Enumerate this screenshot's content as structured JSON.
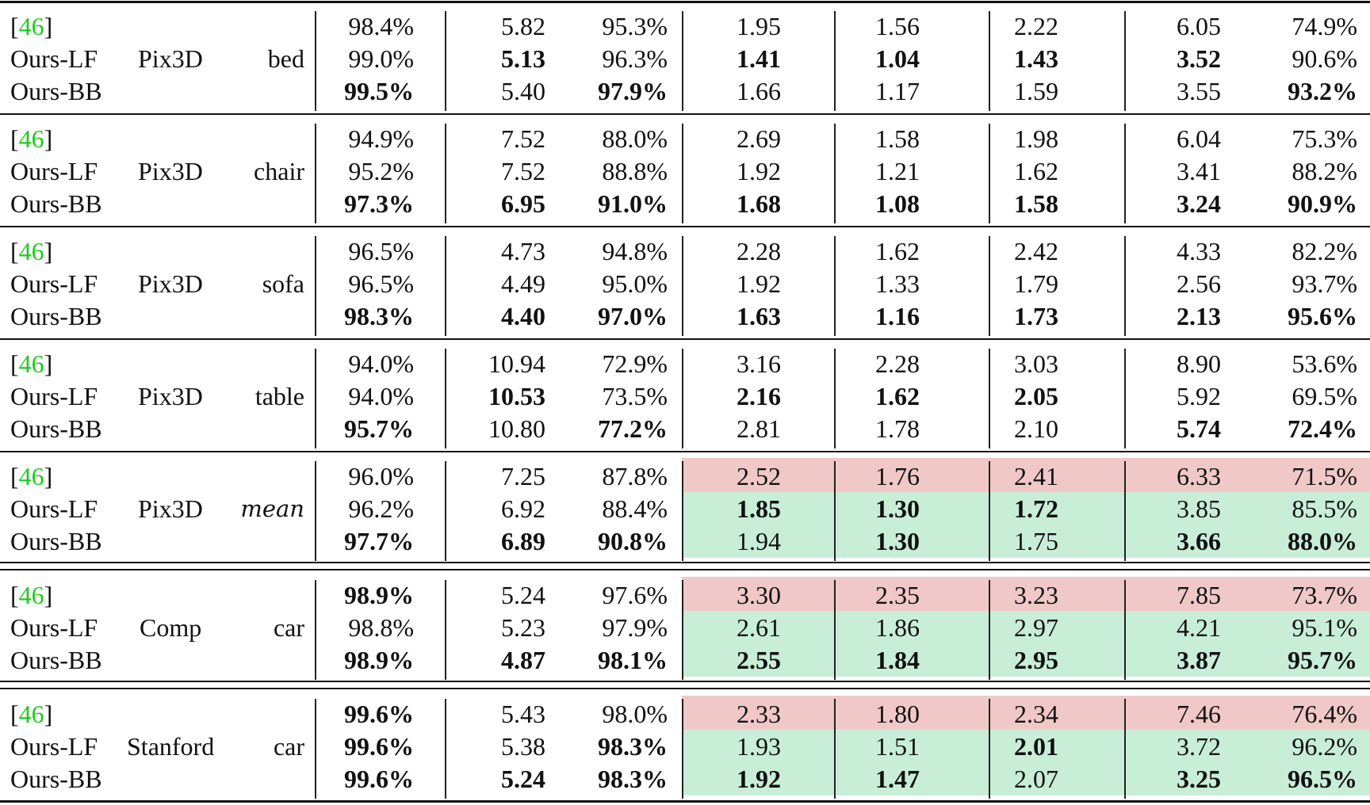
{
  "table": {
    "colors": {
      "citation": "#22c922",
      "worse_bg": "#f0c8c8",
      "better_bg": "#c8eed8"
    },
    "groups": [
      {
        "dataset": "Pix3D",
        "category": "bed",
        "highlight": false,
        "rows": [
          {
            "method": "[46]",
            "is_citation": true,
            "cite": "46",
            "values": [
              "98.4%",
              "5.82",
              "95.3%",
              "1.95",
              "1.56",
              "2.22",
              "6.05",
              "74.9%"
            ],
            "bold": [
              0,
              0,
              0,
              0,
              0,
              0,
              0,
              0
            ]
          },
          {
            "method": "Ours-LF",
            "values": [
              "99.0%",
              "5.13",
              "96.3%",
              "1.41",
              "1.04",
              "1.43",
              "3.52",
              "90.6%"
            ],
            "bold": [
              0,
              1,
              0,
              1,
              1,
              1,
              1,
              0
            ]
          },
          {
            "method": "Ours-BB",
            "values": [
              "99.5%",
              "5.40",
              "97.9%",
              "1.66",
              "1.17",
              "1.59",
              "3.55",
              "93.2%"
            ],
            "bold": [
              1,
              0,
              1,
              0,
              0,
              0,
              0,
              1
            ]
          }
        ]
      },
      {
        "dataset": "Pix3D",
        "category": "chair",
        "highlight": false,
        "rows": [
          {
            "method": "[46]",
            "is_citation": true,
            "cite": "46",
            "values": [
              "94.9%",
              "7.52",
              "88.0%",
              "2.69",
              "1.58",
              "1.98",
              "6.04",
              "75.3%"
            ],
            "bold": [
              0,
              0,
              0,
              0,
              0,
              0,
              0,
              0
            ]
          },
          {
            "method": "Ours-LF",
            "values": [
              "95.2%",
              "7.52",
              "88.8%",
              "1.92",
              "1.21",
              "1.62",
              "3.41",
              "88.2%"
            ],
            "bold": [
              0,
              0,
              0,
              0,
              0,
              0,
              0,
              0
            ]
          },
          {
            "method": "Ours-BB",
            "values": [
              "97.3%",
              "6.95",
              "91.0%",
              "1.68",
              "1.08",
              "1.58",
              "3.24",
              "90.9%"
            ],
            "bold": [
              1,
              1,
              1,
              1,
              1,
              1,
              1,
              1
            ]
          }
        ]
      },
      {
        "dataset": "Pix3D",
        "category": "sofa",
        "highlight": false,
        "rows": [
          {
            "method": "[46]",
            "is_citation": true,
            "cite": "46",
            "values": [
              "96.5%",
              "4.73",
              "94.8%",
              "2.28",
              "1.62",
              "2.42",
              "4.33",
              "82.2%"
            ],
            "bold": [
              0,
              0,
              0,
              0,
              0,
              0,
              0,
              0
            ]
          },
          {
            "method": "Ours-LF",
            "values": [
              "96.5%",
              "4.49",
              "95.0%",
              "1.92",
              "1.33",
              "1.79",
              "2.56",
              "93.7%"
            ],
            "bold": [
              0,
              0,
              0,
              0,
              0,
              0,
              0,
              0
            ]
          },
          {
            "method": "Ours-BB",
            "values": [
              "98.3%",
              "4.40",
              "97.0%",
              "1.63",
              "1.16",
              "1.73",
              "2.13",
              "95.6%"
            ],
            "bold": [
              1,
              1,
              1,
              1,
              1,
              1,
              1,
              1
            ]
          }
        ]
      },
      {
        "dataset": "Pix3D",
        "category": "table",
        "highlight": false,
        "rows": [
          {
            "method": "[46]",
            "is_citation": true,
            "cite": "46",
            "values": [
              "94.0%",
              "10.94",
              "72.9%",
              "3.16",
              "2.28",
              "3.03",
              "8.90",
              "53.6%"
            ],
            "bold": [
              0,
              0,
              0,
              0,
              0,
              0,
              0,
              0
            ]
          },
          {
            "method": "Ours-LF",
            "values": [
              "94.0%",
              "10.53",
              "73.5%",
              "2.16",
              "1.62",
              "2.05",
              "5.92",
              "69.5%"
            ],
            "bold": [
              0,
              1,
              0,
              1,
              1,
              1,
              0,
              0
            ]
          },
          {
            "method": "Ours-BB",
            "values": [
              "95.7%",
              "10.80",
              "77.2%",
              "2.81",
              "1.78",
              "2.10",
              "5.74",
              "72.4%"
            ],
            "bold": [
              1,
              0,
              1,
              0,
              0,
              0,
              1,
              1
            ]
          }
        ]
      },
      {
        "dataset": "Pix3D",
        "category": "mean",
        "category_italic": true,
        "highlight": true,
        "rows": [
          {
            "method": "[46]",
            "is_citation": true,
            "cite": "46",
            "values": [
              "96.0%",
              "7.25",
              "87.8%",
              "2.52",
              "1.76",
              "2.41",
              "6.33",
              "71.5%"
            ],
            "bold": [
              0,
              0,
              0,
              0,
              0,
              0,
              0,
              0
            ]
          },
          {
            "method": "Ours-LF",
            "values": [
              "96.2%",
              "6.92",
              "88.4%",
              "1.85",
              "1.30",
              "1.72",
              "3.85",
              "85.5%"
            ],
            "bold": [
              0,
              0,
              0,
              1,
              1,
              1,
              0,
              0
            ]
          },
          {
            "method": "Ours-BB",
            "values": [
              "97.7%",
              "6.89",
              "90.8%",
              "1.94",
              "1.30",
              "1.75",
              "3.66",
              "88.0%"
            ],
            "bold": [
              1,
              1,
              1,
              0,
              1,
              0,
              1,
              1
            ]
          }
        ]
      },
      {
        "dataset": "Comp",
        "category": "car",
        "highlight": true,
        "rows": [
          {
            "method": "[46]",
            "is_citation": true,
            "cite": "46",
            "values": [
              "98.9%",
              "5.24",
              "97.6%",
              "3.30",
              "2.35",
              "3.23",
              "7.85",
              "73.7%"
            ],
            "bold": [
              1,
              0,
              0,
              0,
              0,
              0,
              0,
              0
            ]
          },
          {
            "method": "Ours-LF",
            "values": [
              "98.8%",
              "5.23",
              "97.9%",
              "2.61",
              "1.86",
              "2.97",
              "4.21",
              "95.1%"
            ],
            "bold": [
              0,
              0,
              0,
              0,
              0,
              0,
              0,
              0
            ]
          },
          {
            "method": "Ours-BB",
            "values": [
              "98.9%",
              "4.87",
              "98.1%",
              "2.55",
              "1.84",
              "2.95",
              "3.87",
              "95.7%"
            ],
            "bold": [
              1,
              1,
              1,
              1,
              1,
              1,
              1,
              1
            ]
          }
        ]
      },
      {
        "dataset": "Stanford",
        "category": "car",
        "highlight": true,
        "rows": [
          {
            "method": "[46]",
            "is_citation": true,
            "cite": "46",
            "values": [
              "99.6%",
              "5.43",
              "98.0%",
              "2.33",
              "1.80",
              "2.34",
              "7.46",
              "76.4%"
            ],
            "bold": [
              1,
              0,
              0,
              0,
              0,
              0,
              0,
              0
            ]
          },
          {
            "method": "Ours-LF",
            "values": [
              "99.6%",
              "5.38",
              "98.3%",
              "1.93",
              "1.51",
              "2.01",
              "3.72",
              "96.2%"
            ],
            "bold": [
              1,
              0,
              1,
              0,
              0,
              1,
              0,
              0
            ]
          },
          {
            "method": "Ours-BB",
            "values": [
              "99.6%",
              "5.24",
              "98.3%",
              "1.92",
              "1.47",
              "2.07",
              "3.25",
              "96.5%"
            ],
            "bold": [
              1,
              1,
              1,
              1,
              1,
              0,
              1,
              1
            ]
          }
        ]
      }
    ]
  }
}
